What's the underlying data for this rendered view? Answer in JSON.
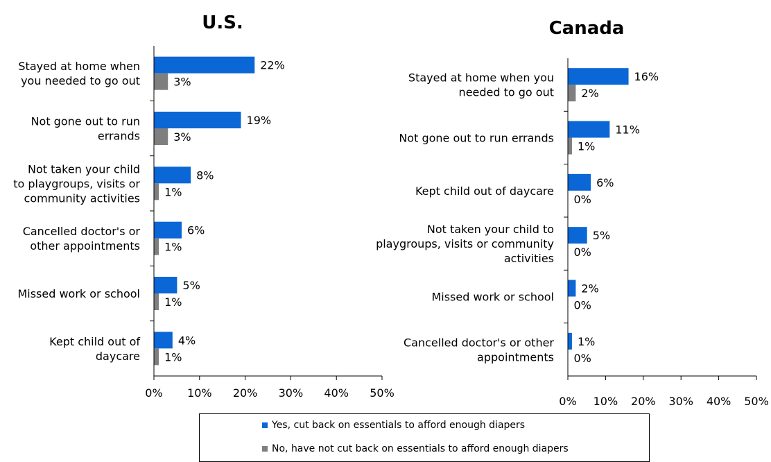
{
  "colors": {
    "yes": "#0B66D6",
    "no": "#7F7F7F",
    "axis": "#000000"
  },
  "legend": {
    "yes_label": "Yes, cut back on essentials to afford enough diapers",
    "no_label": "No, have not cut back on essentials to afford enough diapers"
  },
  "chart_data": [
    {
      "type": "bar",
      "orientation": "horizontal",
      "title": "U.S.",
      "xlim": [
        0,
        50
      ],
      "xticks": [
        "0%",
        "10%",
        "20%",
        "30%",
        "40%",
        "50%"
      ],
      "categories": [
        [
          "Stayed at home when",
          "you needed to go out"
        ],
        [
          "Not gone out to run",
          "errands"
        ],
        [
          "Not taken your child",
          "to playgroups, visits or",
          "community activities"
        ],
        [
          "Cancelled doctor's or",
          "other appointments"
        ],
        [
          "Missed work or school"
        ],
        [
          "Kept child out of",
          "daycare"
        ]
      ],
      "series": [
        {
          "name": "Yes, cut back on essentials to afford enough diapers",
          "values": [
            22,
            19,
            8,
            6,
            5,
            4
          ],
          "labels": [
            "22%",
            "19%",
            "8%",
            "6%",
            "5%",
            "4%"
          ]
        },
        {
          "name": "No, have not cut back on essentials to afford enough diapers",
          "values": [
            3,
            3,
            1,
            1,
            1,
            1
          ],
          "labels": [
            "3%",
            "3%",
            "1%",
            "1%",
            "1%",
            "1%"
          ]
        }
      ]
    },
    {
      "type": "bar",
      "orientation": "horizontal",
      "title": "Canada",
      "xlim": [
        0,
        50
      ],
      "xticks": [
        "0%",
        "10%",
        "20%",
        "30%",
        "40%",
        "50%"
      ],
      "categories": [
        [
          "Stayed at home when you",
          "needed to go out"
        ],
        [
          "Not gone out to run errands"
        ],
        [
          "Kept child out of daycare"
        ],
        [
          "Not taken your child to",
          "playgroups, visits or community",
          "activities"
        ],
        [
          "Missed work or school"
        ],
        [
          "Cancelled doctor's or other",
          "appointments"
        ]
      ],
      "series": [
        {
          "name": "Yes, cut back on essentials to afford enough diapers",
          "values": [
            16,
            11,
            6,
            5,
            2,
            1
          ],
          "labels": [
            "16%",
            "11%",
            "6%",
            "5%",
            "2%",
            "1%"
          ]
        },
        {
          "name": "No, have not cut back on essentials to afford enough diapers",
          "values": [
            2,
            1,
            0,
            0,
            0,
            0
          ],
          "labels": [
            "2%",
            "1%",
            "0%",
            "0%",
            "0%",
            "0%"
          ]
        }
      ]
    }
  ]
}
